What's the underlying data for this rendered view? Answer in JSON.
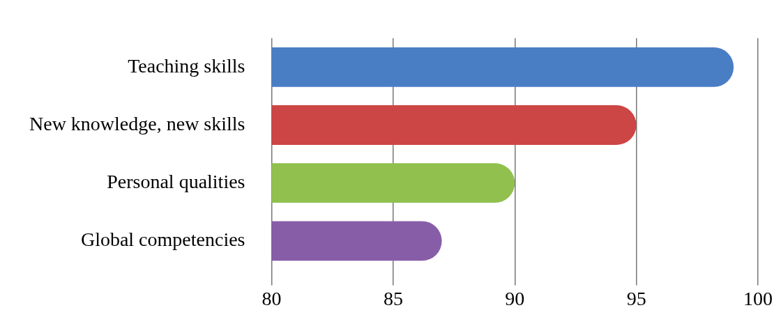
{
  "chart_data": {
    "type": "bar",
    "orientation": "horizontal",
    "categories": [
      "Teaching skills",
      "New knowledge, new skills",
      "Personal qualities",
      "Global competencies"
    ],
    "values": [
      99,
      95,
      90,
      87
    ],
    "colors": [
      "#4a7ec4",
      "#cc4645",
      "#91c04e",
      "#875da8"
    ],
    "xlim": [
      80,
      100
    ],
    "xticks": [
      80,
      85,
      90,
      95,
      100
    ],
    "grid": "x",
    "legend": false
  }
}
